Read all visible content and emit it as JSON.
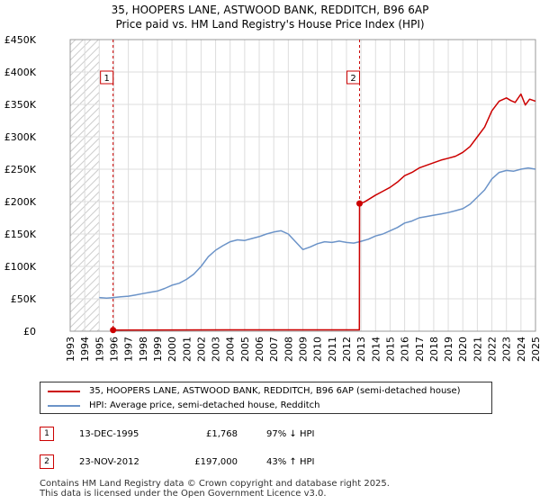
{
  "title_line1": "35, HOOPERS LANE, ASTWOOD BANK, REDDITCH, B96 6AP",
  "title_line2": "Price paid vs. HM Land Registry's House Price Index (HPI)",
  "colors": {
    "property": "#cc0000",
    "hpi": "#6b93c8",
    "hatch": "#cccccc",
    "grid": "#dddddd",
    "marker_border": "#cc0000"
  },
  "legend": {
    "property_label": "35, HOOPERS LANE, ASTWOOD BANK, REDDITCH, B96 6AP (semi-detached house)",
    "hpi_label": "HPI: Average price, semi-detached house, Redditch"
  },
  "sales": [
    {
      "num": "1",
      "date": "13-DEC-1995",
      "price": "£1,768",
      "hpi_rel": "97% ↓ HPI"
    },
    {
      "num": "2",
      "date": "23-NOV-2012",
      "price": "£197,000",
      "hpi_rel": "43% ↑ HPI"
    }
  ],
  "footer_line1": "Contains HM Land Registry data © Crown copyright and database right 2025.",
  "footer_line2": "This data is licensed under the Open Government Licence v3.0.",
  "chart_data": {
    "type": "line",
    "title": "35, HOOPERS LANE, ASTWOOD BANK, REDDITCH, B96 6AP — Price paid vs. HM Land Registry's House Price Index (HPI)",
    "xlim": [
      1993,
      2025
    ],
    "ylim": [
      0,
      450000
    ],
    "x_ticks": [
      1993,
      1994,
      1995,
      1996,
      1997,
      1998,
      1999,
      2000,
      2001,
      2002,
      2003,
      2004,
      2005,
      2006,
      2007,
      2008,
      2009,
      2010,
      2011,
      2012,
      2013,
      2014,
      2015,
      2016,
      2017,
      2018,
      2019,
      2020,
      2021,
      2022,
      2023,
      2024,
      2025
    ],
    "y_ticks": [
      0,
      50000,
      100000,
      150000,
      200000,
      250000,
      300000,
      350000,
      400000,
      450000
    ],
    "y_tick_labels": [
      "£0",
      "£50K",
      "£100K",
      "£150K",
      "£200K",
      "£250K",
      "£300K",
      "£350K",
      "£400K",
      "£450K"
    ],
    "grid": true,
    "hatched_ranges": [
      [
        1993,
        1995.0
      ],
      [
        2025.0,
        2025.3
      ]
    ],
    "markers": [
      {
        "label": "1",
        "x": 1995.95,
        "y": 1768
      },
      {
        "label": "2",
        "x": 2012.9,
        "y": 197000
      }
    ],
    "series": [
      {
        "name": "HPI: Average price, semi-detached house, Redditch",
        "x": [
          1995.0,
          1995.5,
          1996.0,
          1996.5,
          1997.0,
          1997.5,
          1998.0,
          1998.5,
          1999.0,
          1999.5,
          2000.0,
          2000.5,
          2001.0,
          2001.5,
          2002.0,
          2002.5,
          2003.0,
          2003.5,
          2004.0,
          2004.5,
          2005.0,
          2005.5,
          2006.0,
          2006.5,
          2007.0,
          2007.5,
          2008.0,
          2008.5,
          2009.0,
          2009.5,
          2010.0,
          2010.5,
          2011.0,
          2011.5,
          2012.0,
          2012.5,
          2012.9,
          2013.5,
          2014.0,
          2014.5,
          2015.0,
          2015.5,
          2016.0,
          2016.5,
          2017.0,
          2017.5,
          2018.0,
          2018.5,
          2019.0,
          2019.5,
          2020.0,
          2020.5,
          2021.0,
          2021.5,
          2022.0,
          2022.5,
          2023.0,
          2023.5,
          2024.0,
          2024.5,
          2025.0
        ],
        "values": [
          52000,
          51000,
          52000,
          53000,
          54000,
          56000,
          58000,
          60000,
          62000,
          66000,
          71000,
          74000,
          80000,
          88000,
          100000,
          115000,
          125000,
          132000,
          138000,
          141000,
          140000,
          143000,
          146000,
          150000,
          153000,
          155000,
          150000,
          138000,
          126000,
          130000,
          135000,
          138000,
          137000,
          139000,
          137000,
          136000,
          138000,
          142000,
          147000,
          150000,
          155000,
          160000,
          167000,
          170000,
          175000,
          177000,
          179000,
          181000,
          183000,
          186000,
          189000,
          196000,
          207000,
          218000,
          235000,
          245000,
          248000,
          247000,
          250000,
          252000,
          250000
        ]
      },
      {
        "name": "35, HOOPERS LANE, ASTWOOD BANK, REDDITCH, B96 6AP (semi-detached house)",
        "x": [
          1995.95,
          2000.0,
          2005.0,
          2010.0,
          2012.89,
          2012.9,
          2013.2,
          2013.5,
          2014.0,
          2014.5,
          2015.0,
          2015.5,
          2016.0,
          2016.5,
          2017.0,
          2017.5,
          2018.0,
          2018.5,
          2019.0,
          2019.5,
          2020.0,
          2020.5,
          2021.0,
          2021.5,
          2022.0,
          2022.5,
          2023.0,
          2023.3,
          2023.6,
          2024.0,
          2024.3,
          2024.6,
          2025.0
        ],
        "values": [
          1768,
          1900,
          2100,
          2150,
          2150,
          197000,
          199000,
          203000,
          210000,
          216000,
          222000,
          230000,
          240000,
          245000,
          252000,
          256000,
          260000,
          264000,
          267000,
          270000,
          276000,
          285000,
          300000,
          315000,
          340000,
          355000,
          360000,
          356000,
          353000,
          366000,
          349000,
          358000,
          355000
        ]
      }
    ]
  }
}
